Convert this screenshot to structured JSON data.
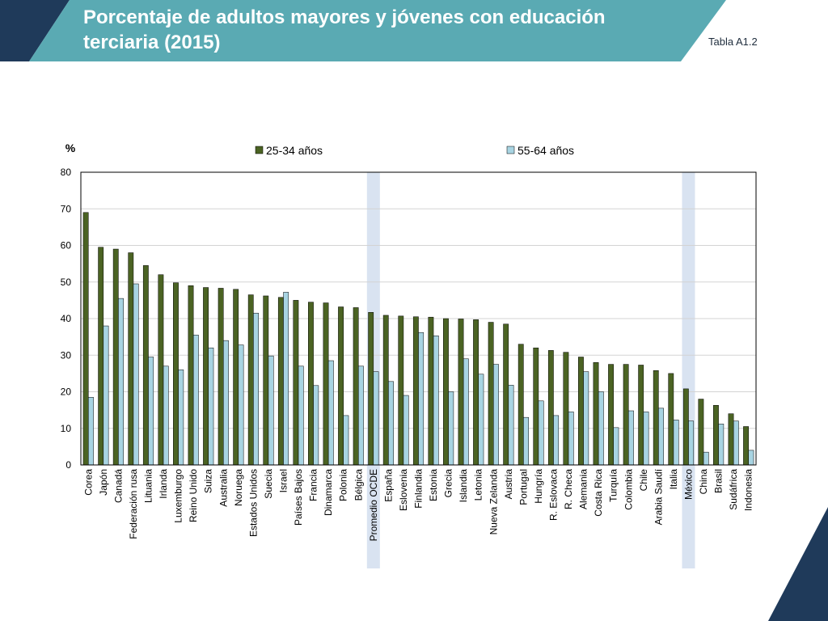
{
  "header": {
    "title": "Porcentaje de adultos mayores y jóvenes con educación terciaria (2015)",
    "table_ref": "Tabla A1.2"
  },
  "colors": {
    "header_band": "#5aaab3",
    "header_dark": "#1f3a5a",
    "series_young": "#4b6323",
    "series_old": "#a8d4e2",
    "highlight": "#d9e3f1"
  },
  "chart_data": {
    "type": "bar",
    "ylabel": "%",
    "ylim": [
      0,
      80
    ],
    "yticks": [
      0,
      10,
      20,
      30,
      40,
      50,
      60,
      70,
      80
    ],
    "grid": true,
    "legend_position": "top",
    "highlighted_categories": [
      "Promedio OCDE",
      "México"
    ],
    "categories": [
      "Corea",
      "Japón",
      "Canadá",
      "Federación rusa",
      "Lituania",
      "Irlanda",
      "Luxemburgo",
      "Reino Unido",
      "Suiza",
      "Australia",
      "Noruega",
      "Estados Unidos",
      "Suecia",
      "Israel",
      "Países Bajos",
      "Francia",
      "Dinamarca",
      "Polonia",
      "Bélgica",
      "Promedio OCDE",
      "España",
      "Eslovenia",
      "Finlandia",
      "Estonia",
      "Grecia",
      "Islandia",
      "Letonia",
      "Nueva Zelanda",
      "Austria",
      "Portugal",
      "Hungría",
      "R. Eslovaca",
      "R. Checa",
      "Alemania",
      "Costa Rica",
      "Turquía",
      "Colombia",
      "Chile",
      "Arabia Saudí",
      "Italia",
      "México",
      "China",
      "Brasil",
      "Sudáfrica",
      "Indonesia"
    ],
    "series": [
      {
        "name": "25-34 años",
        "values": [
          69,
          59.5,
          59,
          58,
          54.5,
          52,
          49.8,
          49,
          48.5,
          48.3,
          48,
          46.5,
          46.2,
          45.8,
          45,
          44.5,
          44.3,
          43.2,
          43,
          41.7,
          40.9,
          40.7,
          40.5,
          40.4,
          40,
          39.9,
          39.7,
          39,
          38.5,
          33,
          32,
          31.3,
          30.8,
          29.5,
          28,
          27.5,
          27.5,
          27.3,
          25.8,
          25,
          20.8,
          18,
          16.3,
          14,
          10.5
        ]
      },
      {
        "name": "55-64 años",
        "values": [
          18.5,
          38,
          45.5,
          49.5,
          29.5,
          27,
          26,
          35.5,
          32,
          34,
          32.8,
          41.5,
          29.8,
          47.2,
          27,
          21.7,
          28.5,
          13.5,
          27,
          25.5,
          22.8,
          19,
          36.2,
          35.3,
          20,
          29,
          24.8,
          27.5,
          21.8,
          13,
          17.5,
          13.5,
          14.5,
          25.5,
          20,
          10.2,
          14.8,
          14.5,
          15.5,
          12.3,
          12,
          3.5,
          11.2,
          12,
          4
        ]
      }
    ]
  }
}
